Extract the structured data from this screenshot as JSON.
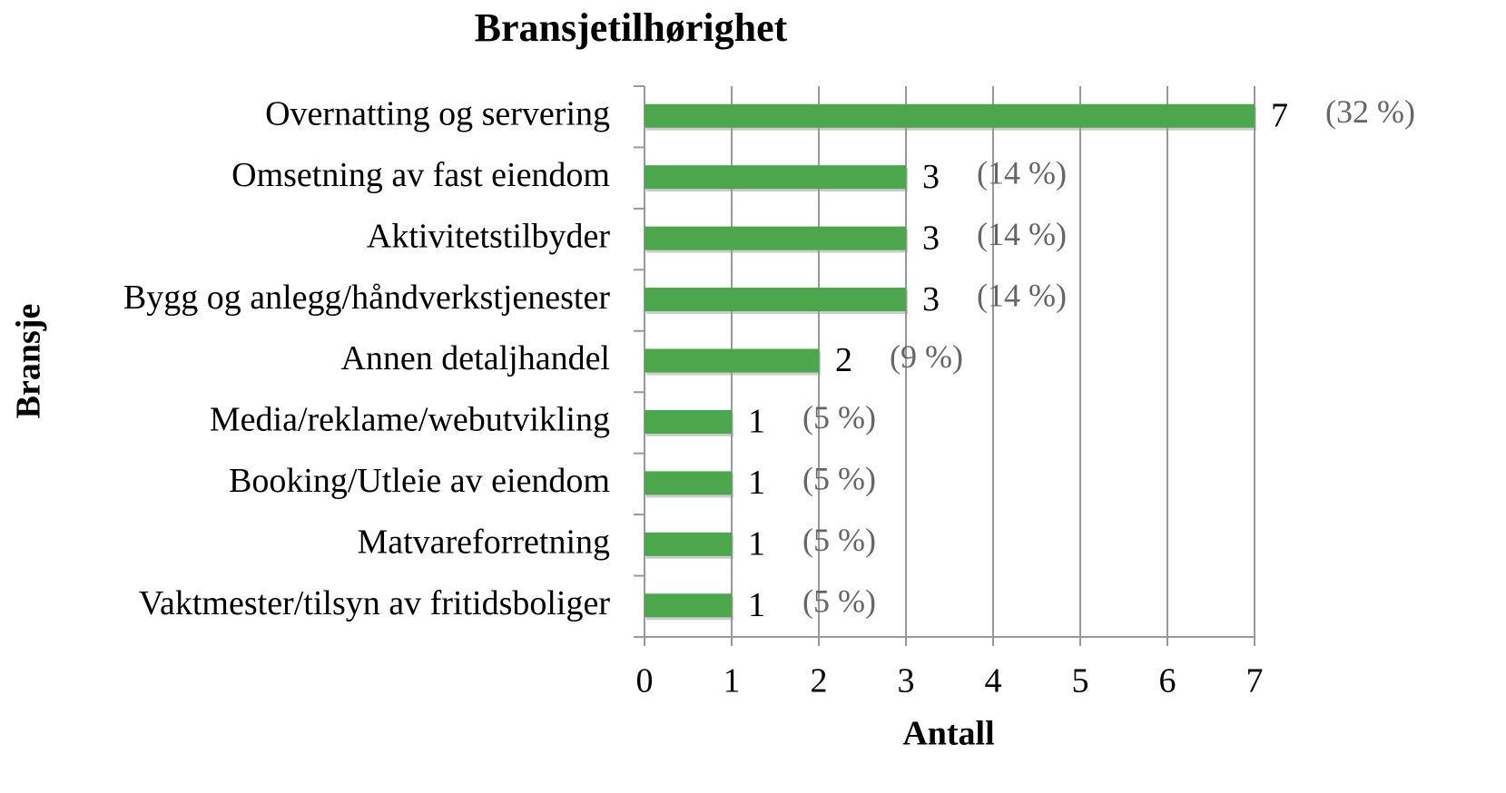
{
  "chart_data": {
    "type": "barh",
    "title": "Bransjetilhørighet",
    "x_label": "Antall",
    "y_label": "Bransje",
    "categories": [
      "Overnatting og servering",
      "Omsetning av fast eiendom",
      "Aktivitetstilbyder",
      "Bygg og anlegg/håndverkstjenester",
      "Annen detaljhandel",
      "Media/reklame/webutvikling",
      "Booking/Utleie av eiendom",
      "Matvareforretning",
      "Vaktmester/tilsyn av fritidsboliger"
    ],
    "values": [
      7,
      3,
      3,
      3,
      2,
      1,
      1,
      1,
      1
    ],
    "annotations": [
      "(32 %)",
      "(14 %)",
      "(14 %)",
      "(14 %)",
      "(9 %)",
      "(5 %)",
      "(5 %)",
      "(5 %)",
      "(5 %)"
    ],
    "color": "#4ca64c",
    "xlim": [
      0,
      7
    ],
    "xticks": [
      0,
      1,
      2,
      3,
      4,
      5,
      6,
      7
    ],
    "grid": true
  }
}
